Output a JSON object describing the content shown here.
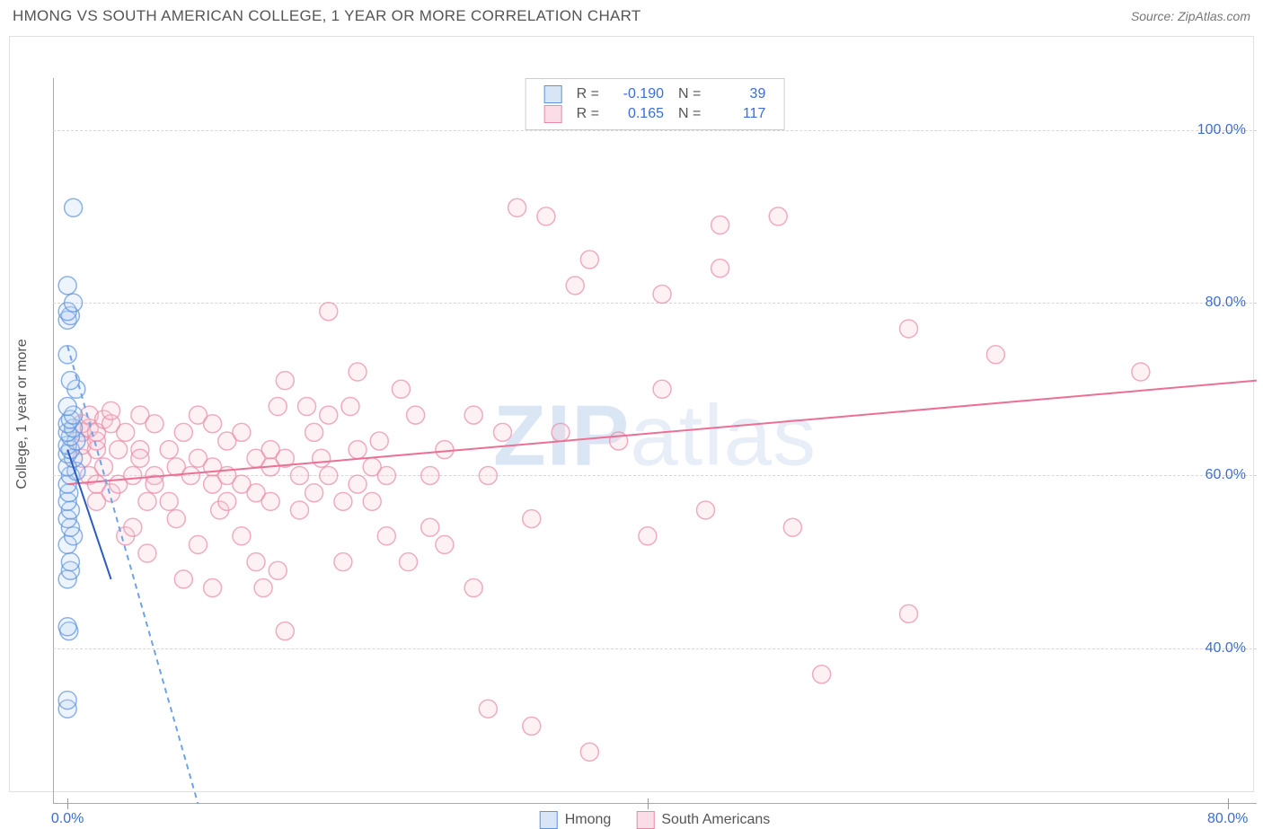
{
  "header": {
    "title": "HMONG VS SOUTH AMERICAN COLLEGE, 1 YEAR OR MORE CORRELATION CHART",
    "source": "Source: ZipAtlas.com"
  },
  "chart": {
    "type": "scatter",
    "ylabel": "College, 1 year or more",
    "watermark_a": "ZIP",
    "watermark_b": "atlas",
    "legend_bottom": [
      {
        "label": "Hmong",
        "key": "hmong"
      },
      {
        "label": "South Americans",
        "key": "south_americans"
      }
    ],
    "legend_top": [
      {
        "series_key": "hmong",
        "r_label": "R =",
        "r_value": "-0.190",
        "n_label": "N =",
        "n_value": "39"
      },
      {
        "series_key": "south_americans",
        "r_label": "R =",
        "r_value": "0.165",
        "n_label": "N =",
        "n_value": "117"
      }
    ],
    "xlim": [
      -1,
      82
    ],
    "ylim": [
      22,
      106
    ],
    "xticks": [
      {
        "v": 0,
        "label": "0.0%"
      },
      {
        "v": 40,
        "label": ""
      },
      {
        "v": 80,
        "label": "80.0%"
      }
    ],
    "yticks": [
      {
        "v": 40,
        "label": "40.0%"
      },
      {
        "v": 60,
        "label": "60.0%"
      },
      {
        "v": 80,
        "label": "80.0%"
      },
      {
        "v": 100,
        "label": "100.0%"
      }
    ],
    "style": {
      "background": "#ffffff",
      "grid_color": "#d6d6d6",
      "axis_color": "#aaaaaa",
      "title_color": "#555555",
      "tick_label_color": "#3b6dd6",
      "marker_radius": 10,
      "marker_fill_opacity": 0.25,
      "marker_stroke_opacity": 0.7,
      "marker_stroke_width": 1.5,
      "trend_line_width": 2
    },
    "series": {
      "hmong": {
        "name": "Hmong",
        "color": "#6fa3e8",
        "fill": "#bcd4f2",
        "stroke": "#5d93dc",
        "trend_solid": {
          "x1": 0,
          "y1": 63,
          "x2": 3,
          "y2": 48
        },
        "trend_dash": {
          "x1": 0,
          "y1": 75,
          "x2": 9,
          "y2": 22
        },
        "points": [
          [
            0.0,
            33
          ],
          [
            0.0,
            34
          ],
          [
            0.1,
            42
          ],
          [
            0.0,
            42.5
          ],
          [
            0.0,
            48
          ],
          [
            0.2,
            49
          ],
          [
            0.2,
            50
          ],
          [
            0.0,
            52
          ],
          [
            0.4,
            53
          ],
          [
            0.2,
            54
          ],
          [
            0.0,
            55
          ],
          [
            0.2,
            56
          ],
          [
            0.0,
            57
          ],
          [
            0.1,
            58
          ],
          [
            0.0,
            59
          ],
          [
            0.2,
            60
          ],
          [
            0.6,
            60.5
          ],
          [
            0.0,
            61
          ],
          [
            0.4,
            62
          ],
          [
            0.0,
            62.5
          ],
          [
            0.2,
            63
          ],
          [
            0.0,
            63.5
          ],
          [
            0.6,
            64
          ],
          [
            0.2,
            64.5
          ],
          [
            0.0,
            65
          ],
          [
            0.4,
            65.5
          ],
          [
            0.0,
            66
          ],
          [
            0.2,
            66.5
          ],
          [
            0.4,
            67
          ],
          [
            0.0,
            68
          ],
          [
            0.6,
            70
          ],
          [
            0.2,
            71
          ],
          [
            0.0,
            74
          ],
          [
            0.0,
            78
          ],
          [
            0.2,
            78.5
          ],
          [
            0.0,
            79
          ],
          [
            0.4,
            80
          ],
          [
            0.0,
            82
          ],
          [
            0.4,
            91
          ]
        ]
      },
      "south_americans": {
        "name": "South Americans",
        "color": "#ec6f94",
        "fill": "#f7c7d5",
        "stroke": "#e88aa8",
        "trend_solid": {
          "x1": 0,
          "y1": 59,
          "x2": 82,
          "y2": 71
        },
        "points": [
          [
            1,
            62
          ],
          [
            1,
            63.5
          ],
          [
            1,
            65
          ],
          [
            1,
            66
          ],
          [
            1.5,
            65.5
          ],
          [
            1.5,
            67
          ],
          [
            1.5,
            60
          ],
          [
            2,
            57
          ],
          [
            2,
            59
          ],
          [
            2,
            63
          ],
          [
            2,
            64
          ],
          [
            2,
            65
          ],
          [
            2.5,
            66.5
          ],
          [
            2.5,
            61
          ],
          [
            3,
            58
          ],
          [
            3,
            66
          ],
          [
            3,
            67.5
          ],
          [
            3.5,
            63
          ],
          [
            3.5,
            59
          ],
          [
            4,
            65
          ],
          [
            4,
            53
          ],
          [
            4.5,
            60
          ],
          [
            4.5,
            54
          ],
          [
            5,
            67
          ],
          [
            5,
            63
          ],
          [
            5,
            62
          ],
          [
            5.5,
            57
          ],
          [
            5.5,
            51
          ],
          [
            6,
            60
          ],
          [
            6,
            66
          ],
          [
            6,
            59
          ],
          [
            7,
            57
          ],
          [
            7,
            63
          ],
          [
            7.5,
            61
          ],
          [
            7.5,
            55
          ],
          [
            8,
            65
          ],
          [
            8,
            48
          ],
          [
            8.5,
            60
          ],
          [
            9,
            67
          ],
          [
            9,
            62
          ],
          [
            9,
            52
          ],
          [
            10,
            66
          ],
          [
            10,
            61
          ],
          [
            10,
            47
          ],
          [
            10,
            59
          ],
          [
            10.5,
            56
          ],
          [
            11,
            57
          ],
          [
            11,
            64
          ],
          [
            11,
            60
          ],
          [
            12,
            65
          ],
          [
            12,
            59
          ],
          [
            12,
            53
          ],
          [
            13,
            50
          ],
          [
            13,
            62
          ],
          [
            13,
            58
          ],
          [
            13.5,
            47
          ],
          [
            14,
            61
          ],
          [
            14,
            63
          ],
          [
            14,
            57
          ],
          [
            14.5,
            68
          ],
          [
            14.5,
            49
          ],
          [
            15,
            42
          ],
          [
            15,
            71
          ],
          [
            15,
            62
          ],
          [
            16,
            56
          ],
          [
            16,
            60
          ],
          [
            16.5,
            68
          ],
          [
            17,
            58
          ],
          [
            17,
            65
          ],
          [
            17.5,
            62
          ],
          [
            18,
            79
          ],
          [
            18,
            67
          ],
          [
            18,
            60
          ],
          [
            19,
            57
          ],
          [
            19,
            50
          ],
          [
            19.5,
            68
          ],
          [
            20,
            63
          ],
          [
            20,
            72
          ],
          [
            20,
            59
          ],
          [
            21,
            61
          ],
          [
            21,
            57
          ],
          [
            21.5,
            64
          ],
          [
            22,
            53
          ],
          [
            22,
            60
          ],
          [
            23,
            70
          ],
          [
            23.5,
            50
          ],
          [
            24,
            67
          ],
          [
            25,
            54
          ],
          [
            25,
            60
          ],
          [
            26,
            52
          ],
          [
            26,
            63
          ],
          [
            28,
            47
          ],
          [
            28,
            67
          ],
          [
            29,
            33
          ],
          [
            29,
            60
          ],
          [
            30,
            65
          ],
          [
            31,
            91
          ],
          [
            32,
            55
          ],
          [
            32,
            31
          ],
          [
            33,
            90
          ],
          [
            34,
            65
          ],
          [
            35,
            82
          ],
          [
            36,
            28
          ],
          [
            36,
            85
          ],
          [
            38,
            64
          ],
          [
            40,
            53
          ],
          [
            41,
            70
          ],
          [
            41,
            81
          ],
          [
            44,
            56
          ],
          [
            45,
            84
          ],
          [
            45,
            89
          ],
          [
            49,
            90
          ],
          [
            50,
            54
          ],
          [
            52,
            37
          ],
          [
            58,
            44
          ],
          [
            58,
            77
          ],
          [
            64,
            74
          ],
          [
            74,
            72
          ]
        ]
      }
    }
  }
}
